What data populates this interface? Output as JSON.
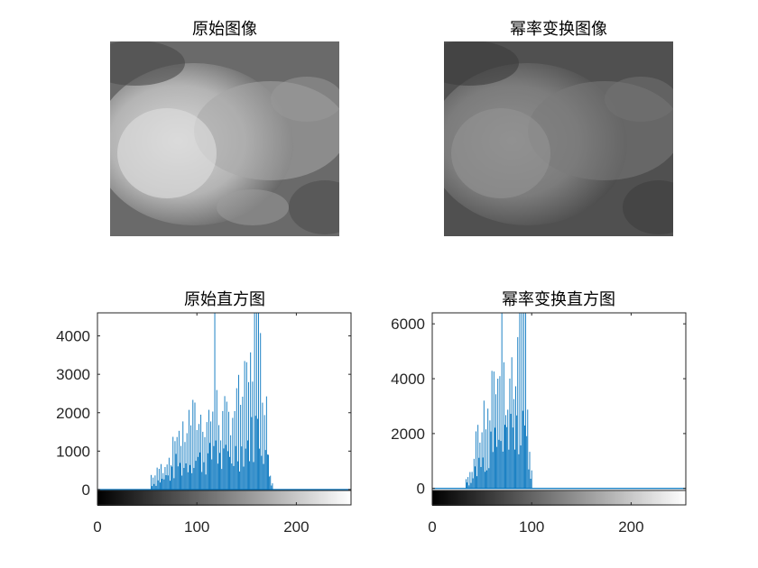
{
  "figure": {
    "background": "#ffffff",
    "bar_color": "#0072bd"
  },
  "chart_data": [
    {
      "type": "image",
      "title": "原始图像",
      "description_tone": "bright",
      "axis_visible": false
    },
    {
      "type": "image",
      "title": "幂率变换图像",
      "description_tone": "dim",
      "axis_visible": false
    },
    {
      "type": "bar",
      "title": "原始直方图",
      "xlim": [
        0,
        255
      ],
      "ylim": [
        -400,
        4600
      ],
      "xticks": [
        0,
        100,
        200
      ],
      "yticks": [
        0,
        1000,
        2000,
        3000,
        4000
      ],
      "colorbar": "grayscale",
      "x_range_nonzero": [
        53,
        177
      ],
      "profile": [
        [
          53,
          0
        ],
        [
          54,
          450
        ],
        [
          58,
          450
        ],
        [
          62,
          700
        ],
        [
          66,
          700
        ],
        [
          70,
          1000
        ],
        [
          74,
          1050
        ],
        [
          78,
          1600
        ],
        [
          80,
          2050
        ],
        [
          84,
          1600
        ],
        [
          88,
          1800
        ],
        [
          92,
          2200
        ],
        [
          96,
          2300
        ],
        [
          100,
          2250
        ],
        [
          104,
          2200
        ],
        [
          108,
          2200
        ],
        [
          112,
          2350
        ],
        [
          116,
          2500
        ],
        [
          118,
          4600
        ],
        [
          121,
          2650
        ],
        [
          124,
          2000
        ],
        [
          128,
          2350
        ],
        [
          132,
          2300
        ],
        [
          136,
          2500
        ],
        [
          140,
          2850
        ],
        [
          144,
          2950
        ],
        [
          148,
          3200
        ],
        [
          152,
          3500
        ],
        [
          156,
          4000
        ],
        [
          158,
          4600
        ],
        [
          162,
          4600
        ],
        [
          164,
          4200
        ],
        [
          166,
          3800
        ],
        [
          168,
          3300
        ],
        [
          170,
          2500
        ],
        [
          172,
          1400
        ],
        [
          174,
          600
        ],
        [
          177,
          0
        ]
      ]
    },
    {
      "type": "bar",
      "title": "幂率变换直方图",
      "xlim": [
        0,
        255
      ],
      "ylim": [
        -600,
        6400
      ],
      "xticks": [
        0,
        100,
        200
      ],
      "yticks": [
        0,
        2000,
        4000,
        6000
      ],
      "colorbar": "grayscale",
      "x_range_nonzero": [
        33,
        101
      ],
      "profile": [
        [
          33,
          0
        ],
        [
          34,
          400
        ],
        [
          38,
          600
        ],
        [
          41,
          1200
        ],
        [
          44,
          2100
        ],
        [
          47,
          2700
        ],
        [
          50,
          2850
        ],
        [
          53,
          3200
        ],
        [
          56,
          3600
        ],
        [
          59,
          4200
        ],
        [
          62,
          4500
        ],
        [
          65,
          4400
        ],
        [
          68,
          5000
        ],
        [
          70,
          6400
        ],
        [
          73,
          4500
        ],
        [
          76,
          4800
        ],
        [
          79,
          5500
        ],
        [
          82,
          5600
        ],
        [
          85,
          6200
        ],
        [
          88,
          6400
        ],
        [
          91,
          6400
        ],
        [
          94,
          6400
        ],
        [
          96,
          3000
        ],
        [
          98,
          1800
        ],
        [
          100,
          800
        ],
        [
          101,
          0
        ]
      ]
    }
  ]
}
